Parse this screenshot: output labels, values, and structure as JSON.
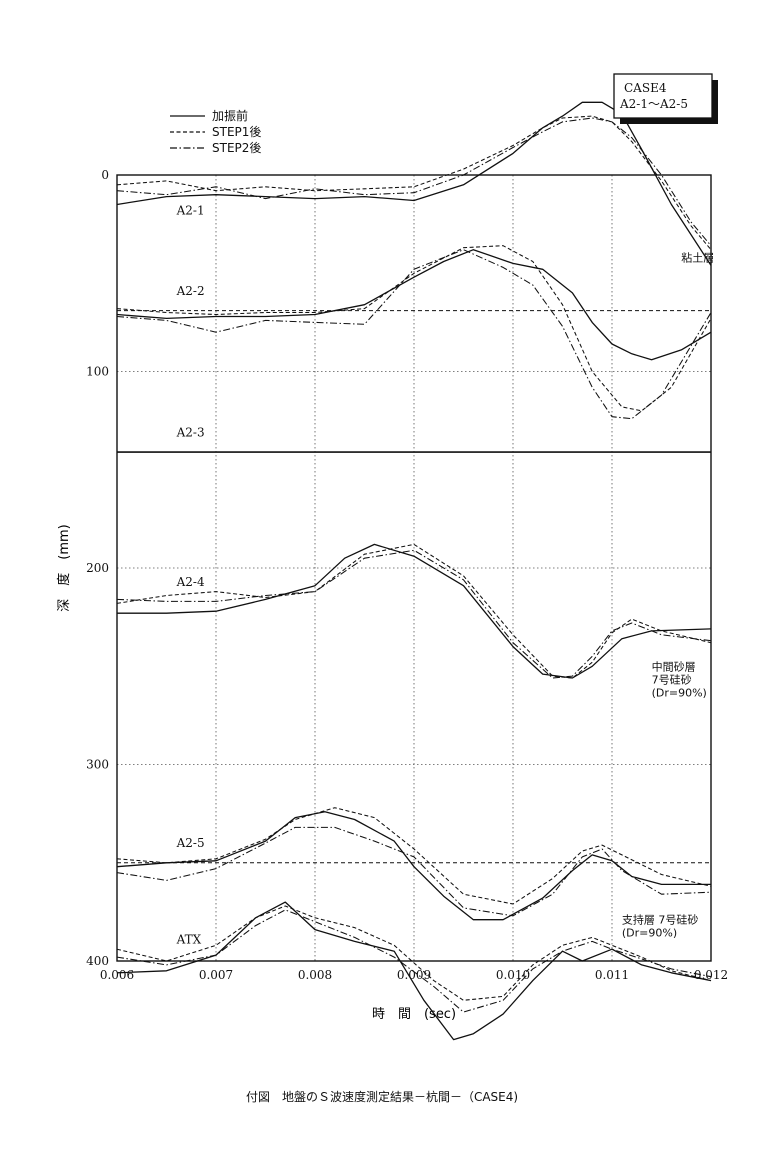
{
  "chart_data": {
    "type": "line",
    "xlabel": "時　間　(sec)",
    "ylabel": "深　度　(mm)",
    "xlim": [
      0.006,
      0.012
    ],
    "ylim": [
      0,
      400
    ],
    "y_inverted": true,
    "grid": "dotted",
    "legend_position": "top-left",
    "x_ticks": [
      {
        "value": 0.006,
        "label": "0.006"
      },
      {
        "value": 0.007,
        "label": "0.007"
      },
      {
        "value": 0.008,
        "label": "0.008"
      },
      {
        "value": 0.009,
        "label": "0.009"
      },
      {
        "value": 0.01,
        "label": "0.010"
      },
      {
        "value": 0.011,
        "label": "0.011"
      },
      {
        "value": 0.012,
        "label": "0.012"
      }
    ],
    "y_ticks": [
      {
        "value": 0,
        "label": "0"
      },
      {
        "value": 100,
        "label": "100"
      },
      {
        "value": 200,
        "label": "200"
      },
      {
        "value": 300,
        "label": "300"
      },
      {
        "value": 400,
        "label": "400"
      }
    ],
    "legend": [
      {
        "label": "加振前",
        "style": "solid"
      },
      {
        "label": "STEP1後",
        "style": "dashed"
      },
      {
        "label": "STEP2後",
        "style": "dashdot"
      }
    ],
    "case_box": {
      "line1": "CASE4",
      "line2": "A2-1～A2-5"
    },
    "baselines": [
      {
        "name": "A2-2",
        "depth": 69,
        "style": "dashed"
      },
      {
        "name": "A2-3",
        "depth": 141,
        "style": "solid"
      },
      {
        "name": "A2-5",
        "depth": 350,
        "style": "dashed"
      }
    ],
    "trace_labels": [
      {
        "text": "A2-1",
        "x": 0.0064,
        "depth": 18
      },
      {
        "text": "A2-2",
        "x": 0.0064,
        "depth": 59
      },
      {
        "text": "A2-3",
        "x": 0.0064,
        "depth": 131
      },
      {
        "text": "A2-4",
        "x": 0.0064,
        "depth": 207
      },
      {
        "text": "A2-5",
        "x": 0.0064,
        "depth": 340
      },
      {
        "text": "ATX",
        "x": 0.0064,
        "depth": 389
      }
    ],
    "annotations": [
      {
        "lines": [
          "粘土層"
        ],
        "x": 0.0117,
        "depth": 42
      },
      {
        "lines": [
          "中間砂層",
          "7号硅砂",
          "(Dr=90%)"
        ],
        "x": 0.0114,
        "depth": 250
      },
      {
        "lines": [
          "支持層 7号硅砂",
          "(Dr=90%)"
        ],
        "x": 0.0111,
        "depth": 379
      }
    ],
    "series": [
      {
        "name": "加振前",
        "trace": "A2-1",
        "style": "solid",
        "x": [
          0.006,
          0.0065,
          0.007,
          0.0075,
          0.008,
          0.0085,
          0.009,
          0.0095,
          0.01,
          0.0103,
          0.0105,
          0.0107,
          0.0109,
          0.0111,
          0.0113,
          0.0116,
          0.012
        ],
        "y": [
          15,
          11,
          10,
          11,
          12,
          11,
          13,
          5,
          -11,
          -24,
          -30,
          -37,
          -37,
          -31,
          -13,
          15,
          46
        ]
      },
      {
        "name": "STEP1後",
        "trace": "A2-1",
        "style": "dashed",
        "x": [
          0.006,
          0.0065,
          0.007,
          0.0075,
          0.008,
          0.0085,
          0.009,
          0.0095,
          0.01,
          0.0103,
          0.0105,
          0.0108,
          0.011,
          0.0112,
          0.0115,
          0.0118,
          0.012
        ],
        "y": [
          5,
          3,
          8,
          6,
          8,
          7,
          6,
          -3,
          -15,
          -24,
          -29,
          -30,
          -27,
          -17,
          3,
          26,
          38
        ]
      },
      {
        "name": "STEP2後",
        "trace": "A2-1",
        "style": "dashdot",
        "x": [
          0.006,
          0.0065,
          0.007,
          0.0075,
          0.008,
          0.0085,
          0.009,
          0.0095,
          0.01,
          0.0103,
          0.0105,
          0.0108,
          0.011,
          0.0112,
          0.0115,
          0.0118,
          0.012
        ],
        "y": [
          8,
          10,
          6,
          12,
          7,
          10,
          9,
          0,
          -14,
          -22,
          -27,
          -29,
          -27,
          -19,
          0,
          24,
          36
        ]
      },
      {
        "name": "加振前",
        "trace": "A2-2",
        "style": "solid",
        "x": [
          0.006,
          0.0065,
          0.007,
          0.0075,
          0.008,
          0.0085,
          0.009,
          0.0093,
          0.0096,
          0.01,
          0.0103,
          0.0106,
          0.0108,
          0.011,
          0.0112,
          0.0114,
          0.0117,
          0.012
        ],
        "y": [
          71,
          73,
          72,
          72,
          71,
          66,
          52,
          44,
          38,
          45,
          48,
          60,
          75,
          86,
          91,
          94,
          89,
          80
        ]
      },
      {
        "name": "STEP1後",
        "trace": "A2-2",
        "style": "dashed",
        "x": [
          0.006,
          0.0065,
          0.007,
          0.0075,
          0.008,
          0.0085,
          0.009,
          0.0095,
          0.0099,
          0.0102,
          0.0105,
          0.0108,
          0.0111,
          0.0113,
          0.0116,
          0.012
        ],
        "y": [
          68,
          70,
          71,
          70,
          70,
          68,
          50,
          37,
          36,
          44,
          66,
          100,
          118,
          120,
          108,
          73
        ]
      },
      {
        "name": "STEP2後",
        "trace": "A2-2",
        "style": "dashdot",
        "x": [
          0.006,
          0.0065,
          0.007,
          0.0075,
          0.008,
          0.0085,
          0.009,
          0.0095,
          0.0099,
          0.0102,
          0.0105,
          0.0108,
          0.011,
          0.0112,
          0.0115,
          0.012
        ],
        "y": [
          72,
          74,
          80,
          74,
          75,
          76,
          48,
          38,
          47,
          56,
          77,
          108,
          123,
          124,
          112,
          70
        ]
      },
      {
        "name": "加振前",
        "trace": "A2-4",
        "style": "solid",
        "x": [
          0.006,
          0.0065,
          0.007,
          0.0075,
          0.008,
          0.0083,
          0.0086,
          0.009,
          0.0095,
          0.01,
          0.0103,
          0.0106,
          0.0108,
          0.0111,
          0.0114,
          0.012
        ],
        "y": [
          223,
          223,
          222,
          216,
          209,
          195,
          188,
          194,
          209,
          240,
          254,
          256,
          250,
          236,
          232,
          231
        ]
      },
      {
        "name": "STEP1後",
        "trace": "A2-4",
        "style": "dashed",
        "x": [
          0.006,
          0.0065,
          0.007,
          0.0075,
          0.008,
          0.0085,
          0.009,
          0.0095,
          0.01,
          0.0104,
          0.0106,
          0.0108,
          0.011,
          0.0112,
          0.0115,
          0.012
        ],
        "y": [
          218,
          214,
          212,
          215,
          212,
          193,
          188,
          204,
          234,
          255,
          256,
          248,
          233,
          226,
          232,
          238
        ]
      },
      {
        "name": "STEP2後",
        "trace": "A2-4",
        "style": "dashdot",
        "x": [
          0.006,
          0.0065,
          0.007,
          0.0075,
          0.008,
          0.0085,
          0.009,
          0.0095,
          0.01,
          0.0104,
          0.0106,
          0.0108,
          0.011,
          0.0112,
          0.0115,
          0.012
        ],
        "y": [
          216,
          217,
          217,
          214,
          212,
          195,
          191,
          206,
          238,
          256,
          255,
          245,
          232,
          228,
          234,
          237
        ]
      },
      {
        "name": "加振前",
        "trace": "A2-5",
        "style": "solid",
        "x": [
          0.006,
          0.0065,
          0.007,
          0.0075,
          0.0078,
          0.0081,
          0.0084,
          0.0088,
          0.009,
          0.0093,
          0.0096,
          0.0099,
          0.0103,
          0.0106,
          0.0108,
          0.011,
          0.0112,
          0.0115,
          0.012
        ],
        "y": [
          352,
          350,
          349,
          339,
          327,
          324,
          328,
          339,
          352,
          367,
          379,
          379,
          368,
          354,
          346,
          349,
          357,
          361,
          361
        ]
      },
      {
        "name": "STEP1後",
        "trace": "A2-5",
        "style": "dashed",
        "x": [
          0.006,
          0.0065,
          0.007,
          0.0075,
          0.0078,
          0.0082,
          0.0086,
          0.009,
          0.0095,
          0.01,
          0.0104,
          0.0107,
          0.0109,
          0.0111,
          0.0115,
          0.012
        ],
        "y": [
          348,
          350,
          348,
          338,
          328,
          322,
          327,
          343,
          366,
          371,
          358,
          344,
          341,
          346,
          356,
          362
        ]
      },
      {
        "name": "STEP2後",
        "trace": "A2-5",
        "style": "dashdot",
        "x": [
          0.006,
          0.0065,
          0.007,
          0.0075,
          0.0078,
          0.0082,
          0.0086,
          0.009,
          0.0095,
          0.01,
          0.0104,
          0.0107,
          0.0109,
          0.0111,
          0.0115,
          0.012
        ],
        "y": [
          355,
          359,
          353,
          340,
          332,
          332,
          339,
          347,
          373,
          377,
          366,
          347,
          343,
          354,
          366,
          365
        ]
      },
      {
        "name": "加振前",
        "trace": "ATX",
        "style": "solid",
        "x": [
          0.006,
          0.0065,
          0.007,
          0.0074,
          0.0077,
          0.008,
          0.0084,
          0.0088,
          0.0091,
          0.0094,
          0.0096,
          0.0099,
          0.0102,
          0.0105,
          0.0107,
          0.011,
          0.0113,
          0.0116,
          0.012
        ],
        "y": [
          406,
          405,
          397,
          378,
          370,
          384,
          390,
          395,
          420,
          440,
          437,
          427,
          410,
          395,
          400,
          394,
          402,
          406,
          410
        ]
      },
      {
        "name": "STEP1後",
        "trace": "ATX",
        "style": "dashed",
        "x": [
          0.006,
          0.0065,
          0.007,
          0.0074,
          0.0077,
          0.008,
          0.0084,
          0.0088,
          0.0092,
          0.0095,
          0.0099,
          0.0102,
          0.0105,
          0.0108,
          0.011,
          0.0113,
          0.0116,
          0.012
        ],
        "y": [
          394,
          400,
          392,
          378,
          372,
          378,
          383,
          392,
          410,
          420,
          418,
          402,
          392,
          388,
          392,
          398,
          405,
          410
        ]
      },
      {
        "name": "STEP2後",
        "trace": "ATX",
        "style": "dashdot",
        "x": [
          0.006,
          0.0065,
          0.007,
          0.0074,
          0.0077,
          0.008,
          0.0084,
          0.0088,
          0.0092,
          0.0095,
          0.0099,
          0.0102,
          0.0105,
          0.0108,
          0.011,
          0.0113,
          0.0116,
          0.012
        ],
        "y": [
          398,
          402,
          397,
          382,
          374,
          380,
          388,
          398,
          413,
          426,
          420,
          404,
          395,
          390,
          394,
          399,
          404,
          408
        ]
      }
    ]
  },
  "caption": "付図　地盤のＳ波速度測定結果－杭間－（CASE4)"
}
